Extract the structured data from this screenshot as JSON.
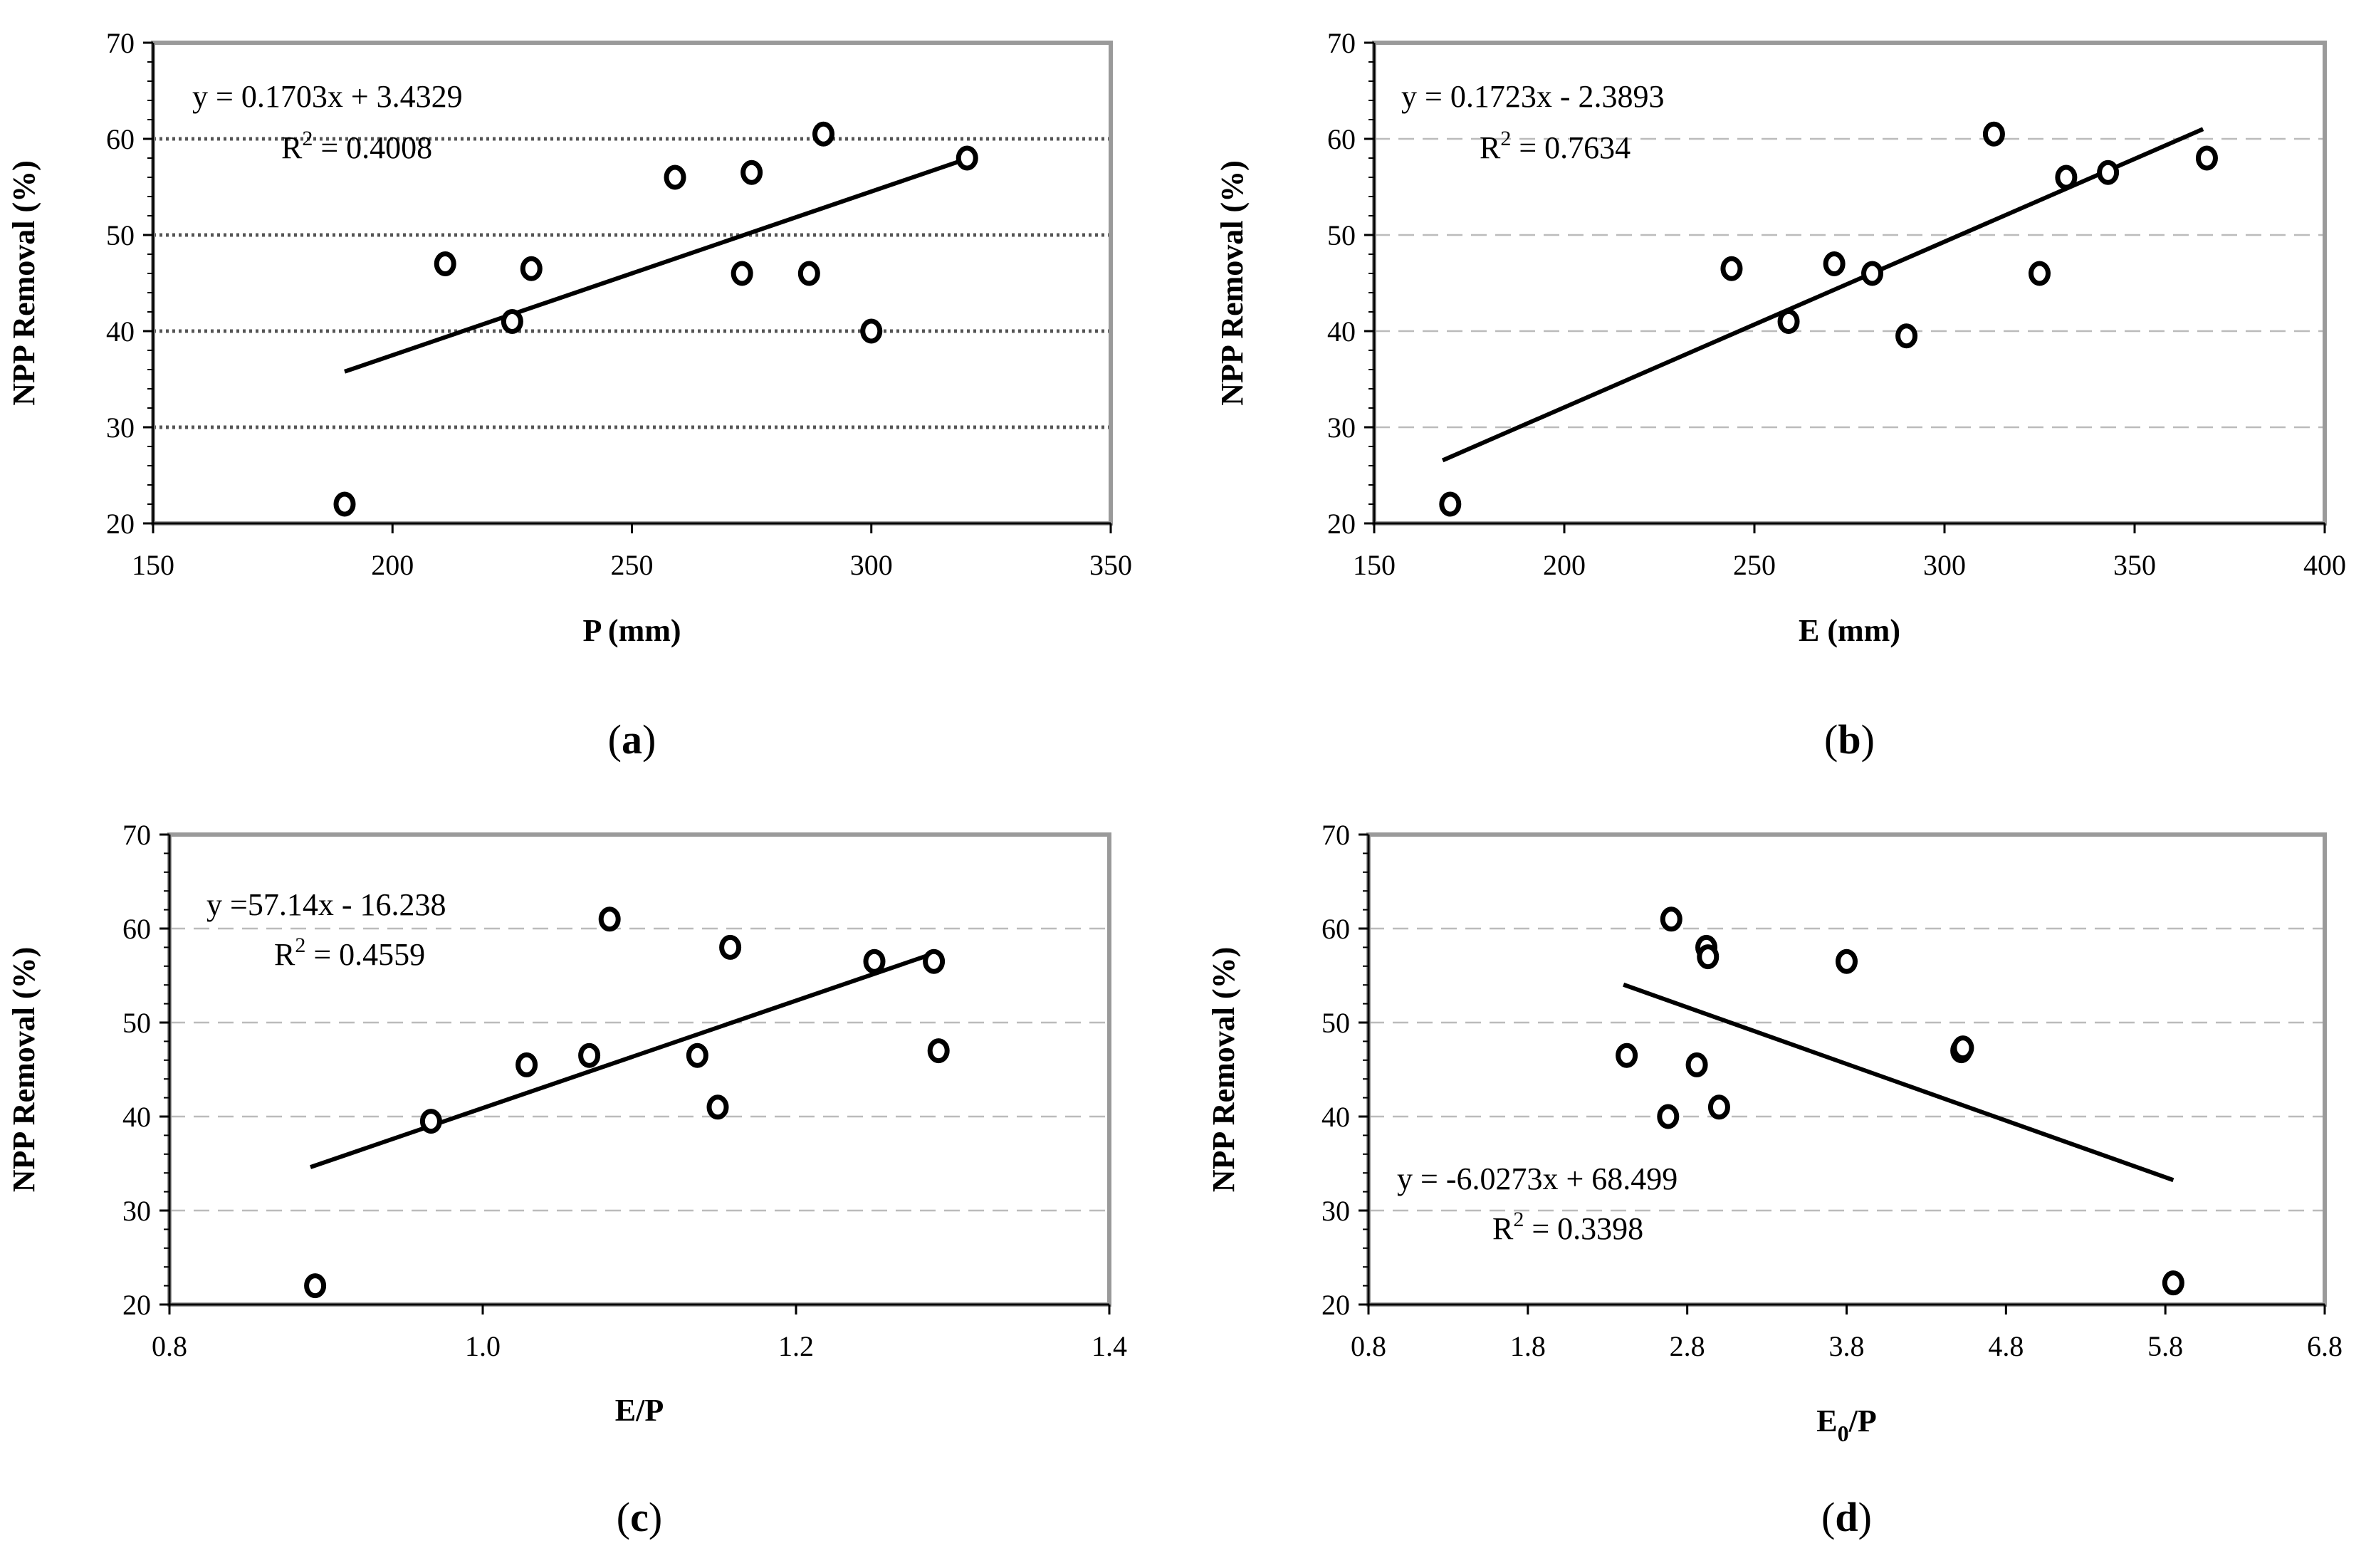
{
  "chart_data": [
    {
      "id": "a",
      "type": "scatter",
      "caption_letter": "a",
      "xlabel": "P (mm)",
      "ylabel": "NPP Removal (%)",
      "xlim": [
        150,
        350
      ],
      "ylim": [
        20,
        70
      ],
      "xticks": [
        "150",
        "200",
        "250",
        "300",
        "350"
      ],
      "yticks": [
        "20",
        "30",
        "40",
        "50",
        "60",
        "70"
      ],
      "grid_style": "dotted",
      "points": [
        {
          "x": 190,
          "y": 22
        },
        {
          "x": 211,
          "y": 47
        },
        {
          "x": 225,
          "y": 41
        },
        {
          "x": 229,
          "y": 46.5
        },
        {
          "x": 259,
          "y": 56
        },
        {
          "x": 273,
          "y": 46
        },
        {
          "x": 275,
          "y": 56.5
        },
        {
          "x": 287,
          "y": 46
        },
        {
          "x": 290,
          "y": 60.5
        },
        {
          "x": 300,
          "y": 40
        },
        {
          "x": 320,
          "y": 58
        }
      ],
      "trendline": {
        "slope": 0.1703,
        "intercept": 3.4329,
        "x_range": [
          190,
          320
        ]
      },
      "equation": "y = 0.1703x + 3.4329",
      "r2_prefix": "R",
      "r2_sup": "2",
      "r2_value": " = 0.4008"
    },
    {
      "id": "b",
      "type": "scatter",
      "caption_letter": "b",
      "xlabel": "E (mm)",
      "ylabel": "NPP Removal (%)",
      "xlim": [
        150,
        400
      ],
      "ylim": [
        20,
        70
      ],
      "xticks": [
        "150",
        "200",
        "250",
        "300",
        "350",
        "400"
      ],
      "yticks": [
        "20",
        "30",
        "40",
        "50",
        "60",
        "70"
      ],
      "grid_style": "dashed",
      "points": [
        {
          "x": 170,
          "y": 22
        },
        {
          "x": 244,
          "y": 46.5
        },
        {
          "x": 259,
          "y": 41
        },
        {
          "x": 271,
          "y": 47
        },
        {
          "x": 281,
          "y": 46
        },
        {
          "x": 290,
          "y": 39.5
        },
        {
          "x": 313,
          "y": 60.5
        },
        {
          "x": 325,
          "y": 46
        },
        {
          "x": 332,
          "y": 56
        },
        {
          "x": 343,
          "y": 56.5
        },
        {
          "x": 369,
          "y": 58
        }
      ],
      "trendline": {
        "slope": 0.1723,
        "intercept": -2.3893,
        "x_range": [
          168,
          368
        ]
      },
      "equation": "y = 0.1723x - 2.3893",
      "r2_prefix": "R",
      "r2_sup": "2",
      "r2_value": " = 0.7634"
    },
    {
      "id": "c",
      "type": "scatter",
      "caption_letter": "c",
      "xlabel": "E/P",
      "ylabel": "NPP Removal (%)",
      "xlim": [
        0.8,
        1.4
      ],
      "ylim": [
        20,
        70
      ],
      "xticks": [
        "0.8",
        "1.0",
        "1.2",
        "1.4"
      ],
      "yticks": [
        "20",
        "30",
        "40",
        "50",
        "60",
        "70"
      ],
      "grid_style": "dashed",
      "points": [
        {
          "x": 0.893,
          "y": 22
        },
        {
          "x": 0.967,
          "y": 39.5
        },
        {
          "x": 1.028,
          "y": 45.5
        },
        {
          "x": 1.068,
          "y": 46.5
        },
        {
          "x": 1.081,
          "y": 61
        },
        {
          "x": 1.137,
          "y": 46.5
        },
        {
          "x": 1.15,
          "y": 41
        },
        {
          "x": 1.158,
          "y": 58
        },
        {
          "x": 1.25,
          "y": 56.5
        },
        {
          "x": 1.288,
          "y": 56.5
        },
        {
          "x": 1.291,
          "y": 47
        }
      ],
      "trendline": {
        "slope": 57.14,
        "intercept": -16.238,
        "x_range": [
          0.89,
          1.29
        ]
      },
      "equation": "y =57.14x - 16.238",
      "r2_prefix": "R",
      "r2_sup": "2",
      "r2_value": " = 0.4559"
    },
    {
      "id": "d",
      "type": "scatter",
      "caption_letter": "d",
      "xlabel_main": "E",
      "xlabel_sub": "0",
      "xlabel_rest": "/P",
      "ylabel": "NPP Removal (%)",
      "xlim": [
        0.8,
        6.8
      ],
      "ylim": [
        20,
        70
      ],
      "xticks": [
        "0.8",
        "1.8",
        "2.8",
        "3.8",
        "4.8",
        "5.8",
        "6.8"
      ],
      "yticks": [
        "20",
        "30",
        "40",
        "50",
        "60",
        "70"
      ],
      "grid_style": "dashed",
      "points": [
        {
          "x": 2.42,
          "y": 46.5
        },
        {
          "x": 2.68,
          "y": 40
        },
        {
          "x": 2.7,
          "y": 61
        },
        {
          "x": 2.86,
          "y": 45.5
        },
        {
          "x": 2.92,
          "y": 58
        },
        {
          "x": 2.93,
          "y": 57
        },
        {
          "x": 3.0,
          "y": 41
        },
        {
          "x": 3.8,
          "y": 56.5
        },
        {
          "x": 4.52,
          "y": 47
        },
        {
          "x": 4.53,
          "y": 47.3
        },
        {
          "x": 5.85,
          "y": 22.3
        }
      ],
      "trendline": {
        "slope": -6.0273,
        "intercept": 68.499,
        "x_range": [
          2.4,
          5.85
        ]
      },
      "equation": "y = -6.0273x + 68.499",
      "r2_prefix": "R",
      "r2_sup": "2",
      "r2_value": " = 0.3398"
    }
  ]
}
